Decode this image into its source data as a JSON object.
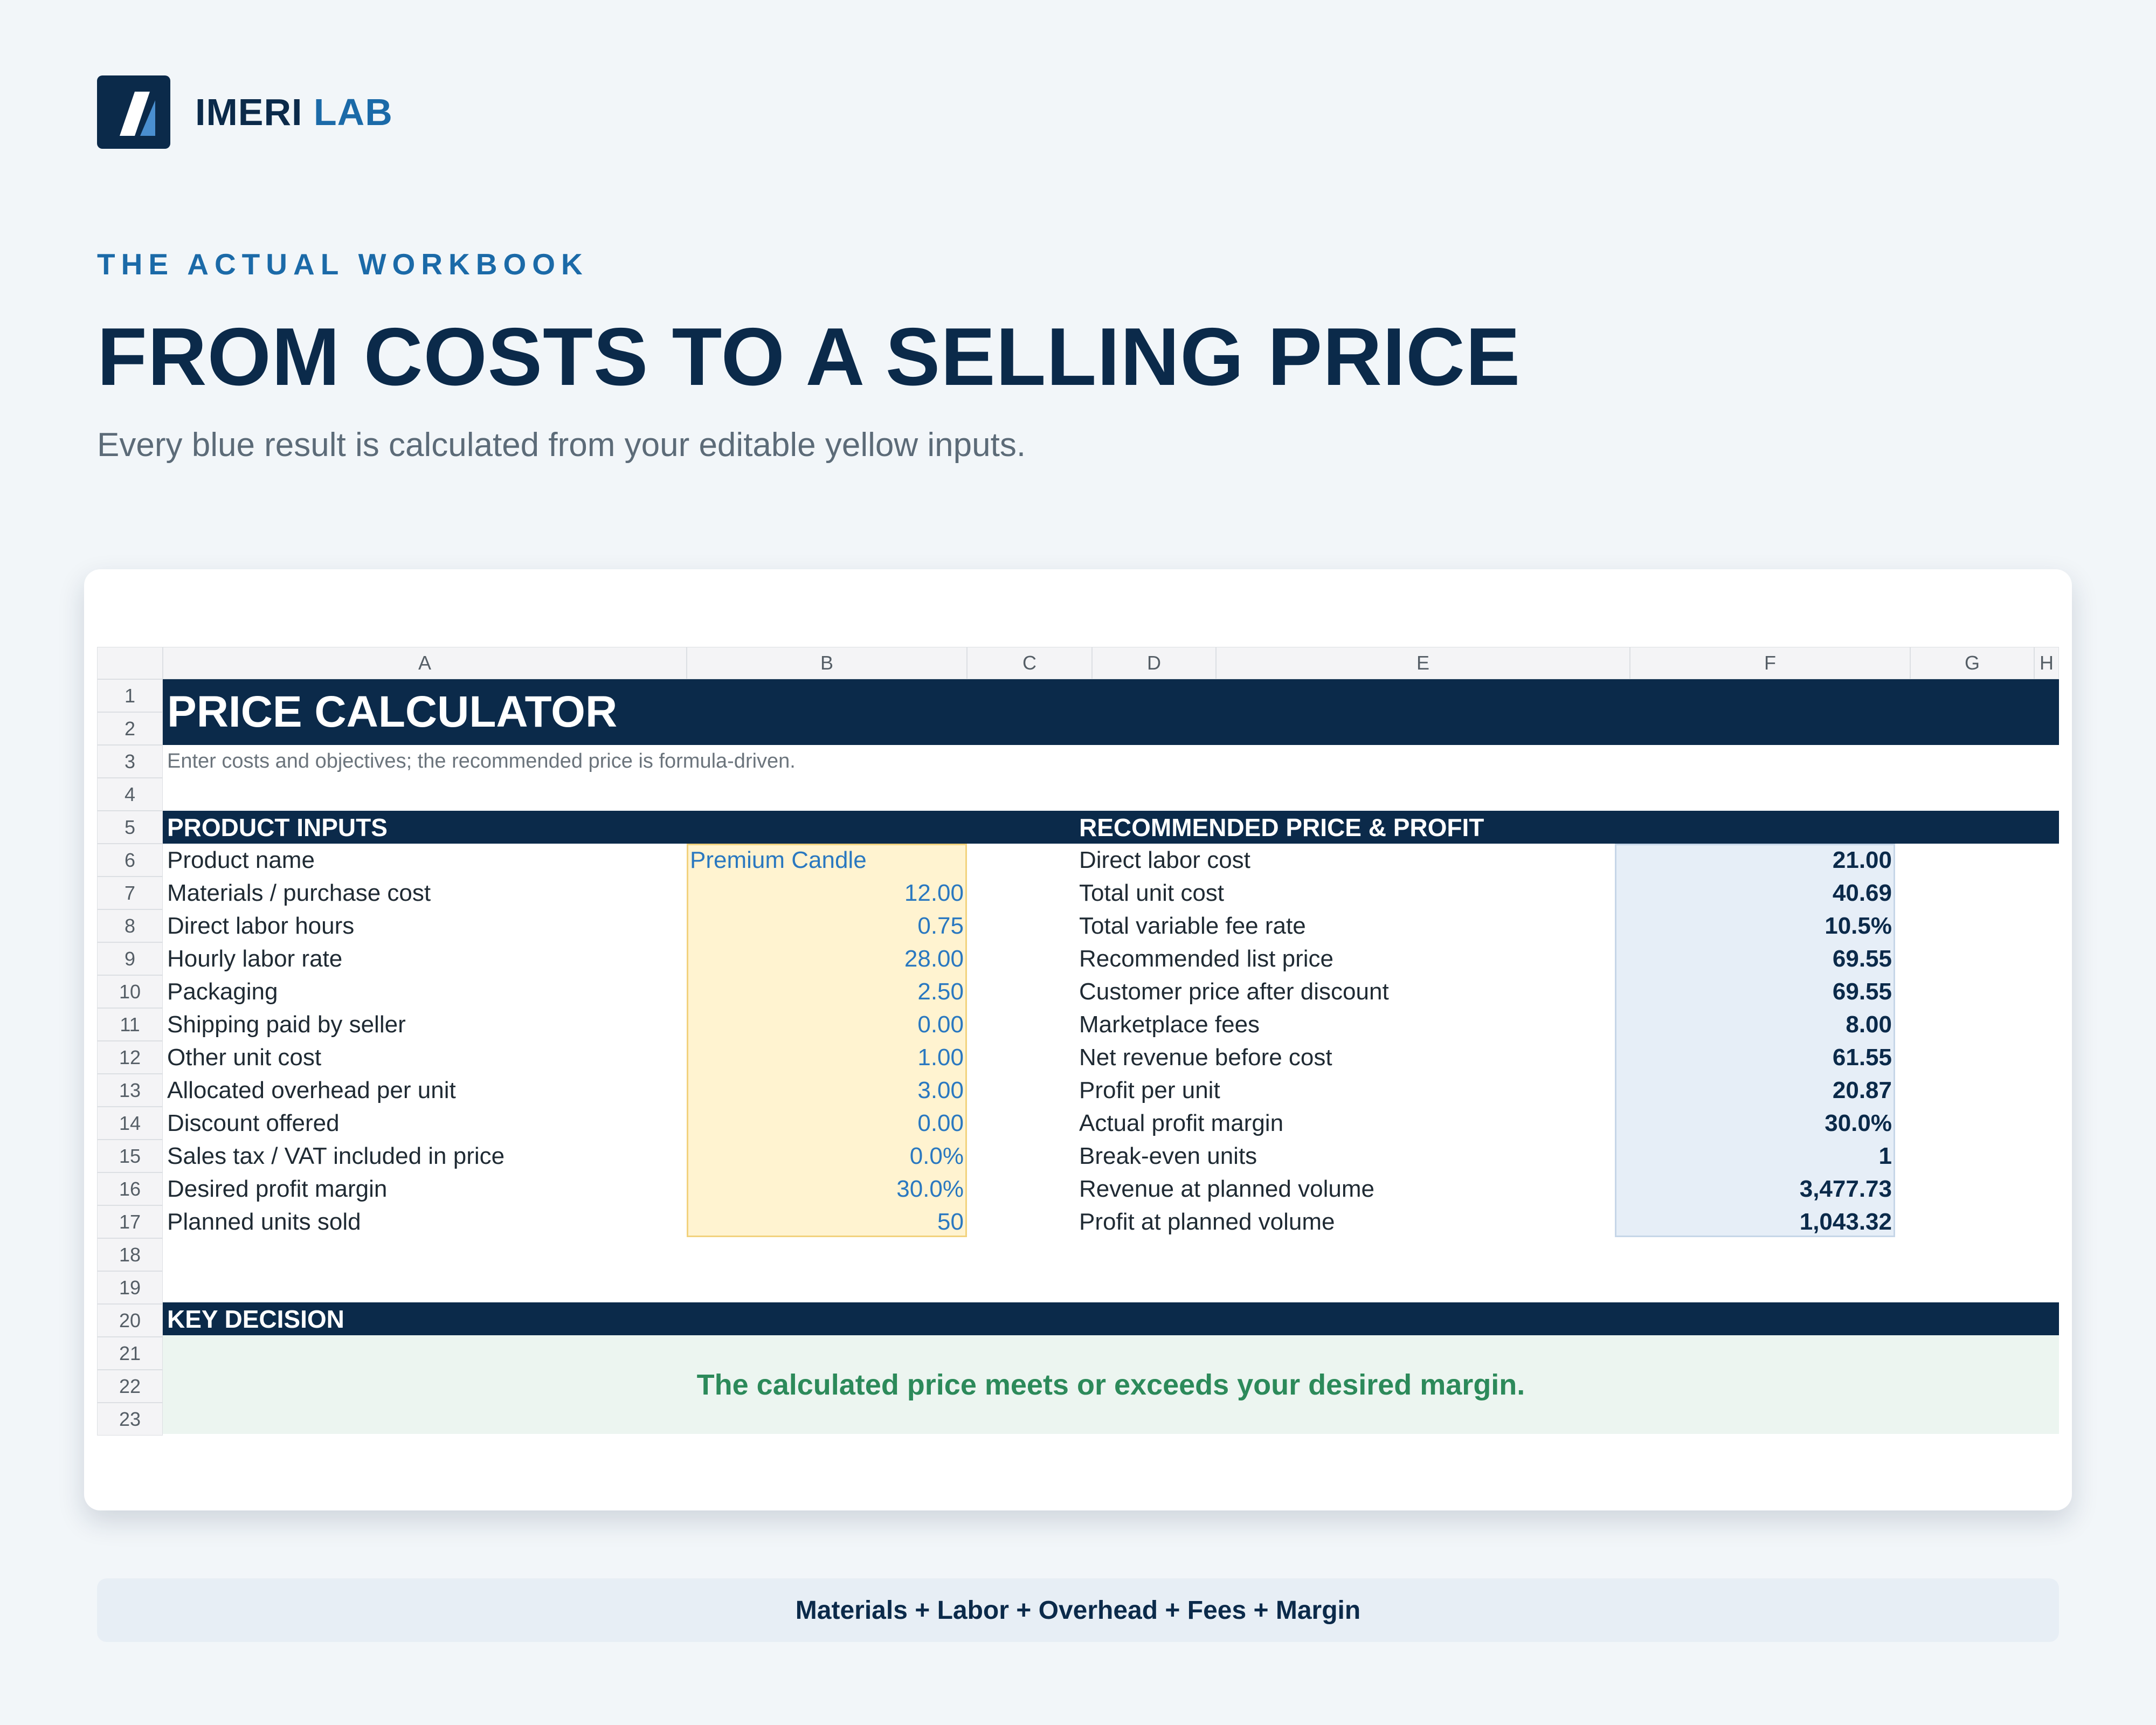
{
  "brand": {
    "name_part1": "IMERI",
    "name_part2": "LAB"
  },
  "eyebrow": "THE ACTUAL WORKBOOK",
  "headline": "FROM COSTS TO A SELLING PRICE",
  "subline": "Every blue result is calculated from your editable yellow inputs.",
  "sheet": {
    "columns": [
      "A",
      "B",
      "C",
      "D",
      "E",
      "F",
      "G",
      "H"
    ],
    "rows": [
      "1",
      "2",
      "3",
      "4",
      "5",
      "6",
      "7",
      "8",
      "9",
      "10",
      "11",
      "12",
      "13",
      "14",
      "15",
      "16",
      "17",
      "18",
      "19",
      "20",
      "21",
      "22",
      "23"
    ],
    "title": "PRICE CALCULATOR",
    "subtitle": "Enter costs and objectives; the recommended price is formula-driven.",
    "inputs": {
      "header": "PRODUCT INPUTS",
      "rows": [
        {
          "label": "Product name",
          "value": "Premium Candle"
        },
        {
          "label": "Materials / purchase cost",
          "value": "12.00"
        },
        {
          "label": "Direct labor hours",
          "value": "0.75"
        },
        {
          "label": "Hourly labor rate",
          "value": "28.00"
        },
        {
          "label": "Packaging",
          "value": "2.50"
        },
        {
          "label": "Shipping paid by seller",
          "value": "0.00"
        },
        {
          "label": "Other unit cost",
          "value": "1.00"
        },
        {
          "label": "Allocated overhead per unit",
          "value": "3.00"
        },
        {
          "label": "Discount offered",
          "value": "0.00"
        },
        {
          "label": "Sales tax / VAT included in price",
          "value": "0.0%"
        },
        {
          "label": "Desired profit margin",
          "value": "30.0%"
        },
        {
          "label": "Planned units sold",
          "value": "50"
        }
      ]
    },
    "outputs": {
      "header": "RECOMMENDED PRICE & PROFIT",
      "rows": [
        {
          "label": "Direct labor cost",
          "value": "21.00"
        },
        {
          "label": "Total unit cost",
          "value": "40.69"
        },
        {
          "label": "Total variable fee rate",
          "value": "10.5%"
        },
        {
          "label": "Recommended list price",
          "value": "69.55"
        },
        {
          "label": "Customer price after discount",
          "value": "69.55"
        },
        {
          "label": "Marketplace fees",
          "value": "8.00"
        },
        {
          "label": "Net revenue before cost",
          "value": "61.55"
        },
        {
          "label": "Profit per unit",
          "value": "20.87"
        },
        {
          "label": "Actual profit margin",
          "value": "30.0%"
        },
        {
          "label": "Break-even units",
          "value": "1"
        },
        {
          "label": "Revenue at planned volume",
          "value": "3,477.73"
        },
        {
          "label": "Profit at planned volume",
          "value": "1,043.32"
        }
      ]
    },
    "decision": {
      "header": "KEY DECISION",
      "message": "The calculated price meets or exceeds your desired margin."
    }
  },
  "formula": "Materials + Labor + Overhead + Fees + Margin",
  "colors": {
    "navy": "#0b2a4a",
    "accent_blue": "#1b6aa8",
    "input_fill": "#fff3d0",
    "output_fill": "#e6eef7",
    "success_green": "#2c8a5a"
  }
}
